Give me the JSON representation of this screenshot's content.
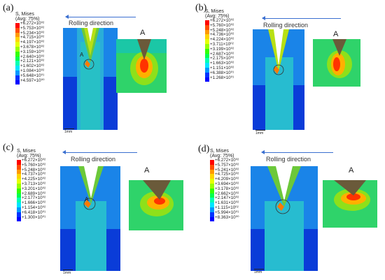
{
  "legend_title": "S, Mises",
  "legend_subtitle": "(Avg: 75%)",
  "rolling_direction": "Rolling direction",
  "detail_label": "A",
  "scale_label": "1mm",
  "panels": [
    {
      "label": "(a)",
      "values": [
        "+6.272×10⁰²",
        "+5.753×10⁰²",
        "+5.234×10⁰²",
        "+4.715×10⁰²",
        "+4.197×10⁰²",
        "+3.678×10⁰²",
        "+3.159×10⁰²",
        "+2.640×10⁰²",
        "+2.121×10⁰²",
        "+1.602×10⁰²",
        "+1.084×10⁰²",
        "+5.648×10⁰¹",
        "+4.597×10⁰⁰"
      ]
    },
    {
      "label": "(b)",
      "values": [
        "+6.272×10⁰²",
        "+5.760×10⁰²",
        "+5.248×10⁰²",
        "+4.736×10⁰²",
        "+4.224×10⁰²",
        "+3.711×10⁰²",
        "+3.199×10⁰²",
        "+2.687×10⁰²",
        "+2.175×10⁰²",
        "+1.663×10⁰²",
        "+1.151×10⁰²",
        "+6.388×10⁰¹",
        "+1.268×10⁰¹"
      ]
    },
    {
      "label": "(c)",
      "values": [
        "+6.272×10⁰²",
        "+5.760×10⁰²",
        "+5.248×10⁰²",
        "+4.737×10⁰²",
        "+4.225×10⁰²",
        "+3.713×10⁰²",
        "+3.201×10⁰²",
        "+2.689×10⁰²",
        "+2.177×10⁰²",
        "+1.666×10⁰²",
        "+1.154×10⁰²",
        "+6.418×10⁰¹",
        "+1.300×10⁰¹"
      ]
    },
    {
      "label": "(d)",
      "values": [
        "+6.272×10⁰²",
        "+5.757×10⁰²",
        "+5.241×10⁰²",
        "+4.725×10⁰²",
        "+4.209×10⁰²",
        "+3.694×10⁰²",
        "+3.178×10⁰²",
        "+2.662×10⁰²",
        "+2.147×10⁰²",
        "+1.631×10⁰²",
        "+1.115×10⁰²",
        "+5.994×10⁰¹",
        "+8.363×10⁰⁰"
      ]
    }
  ],
  "colors": [
    "#ff0000",
    "#ff4d00",
    "#ff9900",
    "#ffd400",
    "#e6ff00",
    "#99ff00",
    "#33ff00",
    "#00ff4d",
    "#00ffb3",
    "#00e6ff",
    "#0099ff",
    "#0033ff",
    "#0000ff"
  ]
}
